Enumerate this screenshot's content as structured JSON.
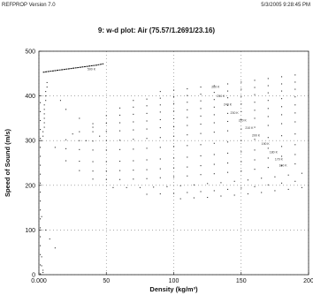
{
  "header": {
    "app_version": "REFPROP Version 7.0",
    "timestamp": "5/3/2005 9:28:45 PM"
  },
  "chart_data": {
    "type": "scatter",
    "title": "9: w-d plot: Air (75.57/1.2691/23.16)",
    "xlabel": "Density (kg/m³)",
    "ylabel": "Speed of Sound (m/s)",
    "xlim": [
      0,
      200
    ],
    "ylim": [
      0,
      500
    ],
    "x_ticks": [
      0,
      50,
      100,
      150,
      200
    ],
    "x_tick_labels": [
      "0.000",
      "50",
      "100",
      "150",
      "200"
    ],
    "y_ticks": [
      0,
      100,
      200,
      300,
      400,
      500
    ],
    "y_tick_labels": [
      "0",
      "100",
      "200",
      "300",
      "400",
      "500"
    ],
    "grid": true,
    "grid_style": "dotted",
    "labeled_line": {
      "label": "500 K",
      "label_position": [
        52,
        464
      ],
      "x": [
        3,
        8,
        13,
        18,
        23,
        28,
        33,
        38,
        43,
        48
      ],
      "y": [
        453,
        455,
        457,
        459,
        461,
        463,
        465,
        467,
        469,
        472
      ]
    },
    "annotations": [
      {
        "text": "500 K",
        "x": 36,
        "y": 458
      },
      {
        "text": "260 K",
        "x": 128,
        "y": 418
      },
      {
        "text": "250 K",
        "x": 132,
        "y": 397
      },
      {
        "text": "240 K",
        "x": 137,
        "y": 378
      },
      {
        "text": "230 K",
        "x": 142,
        "y": 360
      },
      {
        "text": "220 K",
        "x": 148,
        "y": 343
      },
      {
        "text": "210 K",
        "x": 153,
        "y": 326
      },
      {
        "text": "200 K",
        "x": 158,
        "y": 309
      },
      {
        "text": "190 K",
        "x": 165,
        "y": 291
      },
      {
        "text": "180 K",
        "x": 171,
        "y": 272
      },
      {
        "text": "170 K",
        "x": 175,
        "y": 256
      },
      {
        "text": "160 K",
        "x": 178,
        "y": 242
      }
    ],
    "series": [
      {
        "x": [
          1,
          1,
          1,
          1,
          1,
          1,
          1,
          1,
          1,
          1,
          1,
          1,
          1,
          1,
          1,
          1,
          1,
          1,
          1,
          1
        ],
        "y": [
          2,
          22,
          45,
          65,
          85,
          105,
          125,
          145,
          165,
          185,
          205,
          225,
          245,
          265,
          285,
          305,
          325,
          345,
          365,
          385
        ]
      },
      {
        "x": [
          4,
          4,
          4,
          5,
          5,
          5,
          6,
          6
        ],
        "y": [
          330,
          350,
          370,
          390,
          400,
          410,
          420,
          430
        ]
      },
      {
        "x": [
          2,
          3,
          3,
          4,
          4,
          4
        ],
        "y": [
          300,
          310,
          320,
          340,
          360,
          380
        ]
      },
      {
        "x": [
          12,
          20,
          30,
          40,
          50,
          60,
          70,
          80,
          90,
          100,
          110,
          120,
          130,
          140,
          150,
          160,
          170,
          180,
          190
        ],
        "y": [
          285,
          282,
          280,
          279,
          279,
          280,
          281,
          283,
          285,
          287,
          289,
          291,
          294,
          297,
          300,
          303,
          307,
          311,
          315
        ]
      },
      {
        "x": [
          20,
          30,
          40,
          50,
          60,
          70,
          80,
          90,
          100,
          110,
          120,
          130,
          140,
          150,
          160,
          170,
          180,
          190
        ],
        "y": [
          302,
          300,
          299,
          300,
          301,
          303,
          305,
          307,
          310,
          313,
          316,
          319,
          322,
          326,
          330,
          334,
          338,
          342
        ]
      },
      {
        "x": [
          30,
          40,
          50,
          60,
          70,
          80,
          90,
          100,
          110,
          120,
          130,
          140,
          150,
          160,
          170,
          180,
          190
        ],
        "y": [
          320,
          320,
          321,
          322,
          324,
          326,
          329,
          331,
          334,
          337,
          340,
          343,
          347,
          350,
          354,
          358,
          362
        ]
      },
      {
        "x": [
          40,
          50,
          60,
          70,
          80,
          90,
          100,
          110,
          120,
          130,
          140,
          150,
          160,
          170,
          180,
          190
        ],
        "y": [
          338,
          339,
          340,
          342,
          344,
          347,
          349,
          352,
          355,
          358,
          361,
          365,
          368,
          372,
          376,
          380
        ]
      },
      {
        "x": [
          50,
          60,
          70,
          80,
          90,
          100,
          110,
          120,
          130,
          140,
          150,
          160,
          170,
          180,
          190
        ],
        "y": [
          356,
          357,
          359,
          361,
          364,
          366,
          369,
          372,
          375,
          379,
          382,
          386,
          390,
          394,
          398
        ]
      },
      {
        "x": [
          60,
          70,
          80,
          90,
          100,
          110,
          120,
          130,
          140,
          150,
          160,
          170,
          180,
          190
        ],
        "y": [
          373,
          375,
          378,
          380,
          383,
          386,
          389,
          392,
          396,
          399,
          403,
          407,
          411,
          415
        ]
      },
      {
        "x": [
          70,
          80,
          90,
          100,
          110,
          120,
          130,
          140,
          150,
          160,
          170,
          180,
          190
        ],
        "y": [
          390,
          393,
          395,
          398,
          401,
          404,
          408,
          411,
          415,
          419,
          423,
          427,
          431
        ]
      },
      {
        "x": [
          90,
          100,
          110,
          120,
          130,
          140,
          150,
          160,
          170,
          180,
          190
        ],
        "y": [
          410,
          413,
          416,
          420,
          423,
          427,
          431,
          435,
          439,
          443,
          447
        ]
      },
      {
        "x": [
          20,
          30,
          40,
          50,
          60,
          70,
          80,
          90,
          100,
          110,
          120,
          130,
          140,
          150,
          160,
          170,
          180,
          190
        ],
        "y": [
          255,
          254,
          253,
          253,
          254,
          255,
          257,
          259,
          261,
          263,
          266,
          269,
          272,
          275,
          279,
          283,
          287,
          291
        ]
      },
      {
        "x": [
          30,
          40,
          50,
          60,
          70,
          80,
          90,
          100,
          110,
          120,
          130,
          140,
          150,
          160,
          170,
          180,
          190
        ],
        "y": [
          233,
          232,
          232,
          233,
          234,
          235,
          237,
          239,
          241,
          244,
          247,
          250,
          253,
          257,
          261,
          265,
          269
        ]
      },
      {
        "x": [
          40,
          50,
          60,
          70,
          80,
          90,
          100,
          110,
          120,
          130,
          140,
          150,
          160,
          170,
          180,
          190
        ],
        "y": [
          214,
          213,
          213,
          214,
          215,
          217,
          219,
          221,
          224,
          226,
          229,
          232,
          236,
          240,
          244,
          248
        ]
      },
      {
        "x": [
          55,
          65,
          75,
          85,
          95,
          105,
          115,
          125,
          135,
          145,
          155,
          165,
          175,
          185,
          195
        ],
        "y": [
          195,
          195,
          195,
          196,
          197,
          199,
          201,
          204,
          206,
          209,
          212,
          216,
          219,
          223,
          227
        ]
      },
      {
        "x": [
          80,
          90,
          100,
          110,
          120,
          130,
          140,
          150,
          160,
          170,
          180,
          190
        ],
        "y": [
          180,
          181,
          182,
          184,
          186,
          188,
          191,
          194,
          197,
          201,
          205,
          209
        ]
      },
      {
        "x": [
          105,
          115,
          125,
          135,
          145,
          155,
          165,
          175,
          185,
          195
        ],
        "y": [
          170,
          172,
          173,
          176,
          178,
          181,
          184,
          188,
          191,
          195
        ]
      },
      {
        "x": [
          16,
          20,
          30,
          40,
          45,
          35,
          25
        ],
        "y": [
          390,
          370,
          350,
          330,
          310,
          300,
          315
        ]
      },
      {
        "x": [
          2,
          5,
          8,
          12,
          2,
          2,
          3,
          3
        ],
        "y": [
          130,
          100,
          80,
          60,
          40,
          20,
          10,
          5
        ]
      }
    ]
  }
}
